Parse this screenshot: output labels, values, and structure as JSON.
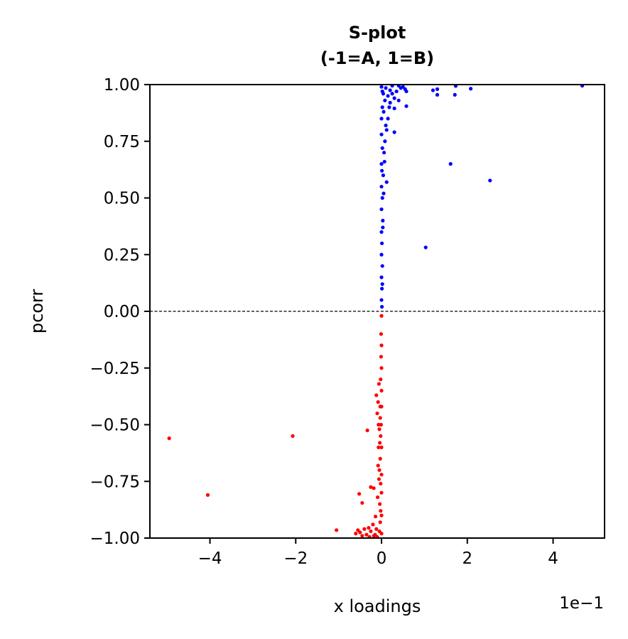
{
  "chart_data": {
    "type": "scatter",
    "title": "S-plot",
    "subtitle": "(-1=A, 1=B)",
    "xlabel": "x loadings",
    "ylabel": "pcorr",
    "x_offset_label": "1e−1",
    "xlim": [
      -0.54,
      0.52
    ],
    "ylim": [
      -1.0,
      1.0
    ],
    "xticks": [
      -0.4,
      -0.2,
      0.0,
      0.2,
      0.4
    ],
    "xtick_labels": [
      "−4",
      "−2",
      "0",
      "2",
      "4"
    ],
    "yticks": [
      1.0,
      0.75,
      0.5,
      0.25,
      0.0,
      -0.25,
      -0.5,
      -0.75,
      -1.0
    ],
    "ytick_labels": [
      "1.00",
      "0.75",
      "0.50",
      "0.25",
      "0.00",
      "−0.25",
      "−0.50",
      "−0.75",
      "−1.00"
    ],
    "reference_line": {
      "y": 0.0,
      "style": "dashed",
      "color": "#000000"
    },
    "grid": false,
    "series": [
      {
        "color": "#0000ff",
        "points": [
          [
            0.468,
            0.995
          ],
          [
            0.253,
            0.577
          ],
          [
            0.161,
            0.65
          ],
          [
            0.103,
            0.282
          ],
          [
            0.208,
            0.982
          ],
          [
            0.173,
            0.994
          ],
          [
            0.171,
            0.955
          ],
          [
            0.13,
            0.98
          ],
          [
            0.12,
            0.975
          ],
          [
            0.13,
            0.955
          ],
          [
            0.058,
            0.97
          ],
          [
            0.058,
            0.905
          ],
          [
            0.055,
            0.98
          ],
          [
            0.05,
            0.99
          ],
          [
            0.045,
            0.985
          ],
          [
            0.04,
            0.995
          ],
          [
            0.035,
            0.97
          ],
          [
            0.03,
            0.94
          ],
          [
            0.025,
            0.96
          ],
          [
            0.04,
            0.93
          ],
          [
            0.03,
            0.895
          ],
          [
            0.02,
            0.92
          ],
          [
            0.015,
            0.95
          ],
          [
            0.01,
            0.985
          ],
          [
            0.03,
            0.79
          ],
          [
            0.015,
            0.85
          ],
          [
            0.01,
            0.82
          ],
          [
            0.012,
            0.8
          ],
          [
            0.008,
            0.75
          ],
          [
            0.006,
            0.7
          ],
          [
            0.004,
            0.6
          ],
          [
            0.012,
            0.57
          ],
          [
            0.002,
            0.5
          ],
          [
            0.003,
            0.4
          ],
          [
            0.001,
            0.3
          ],
          [
            0.002,
            0.2
          ],
          [
            0.001,
            0.1
          ],
          [
            0.001,
            0.02
          ],
          [
            0.005,
            0.88
          ],
          [
            0.008,
            0.93
          ],
          [
            0.0,
            0.99
          ],
          [
            0.002,
            0.97
          ],
          [
            0.004,
            0.96
          ],
          [
            0.002,
            0.9
          ],
          [
            0.0,
            0.85
          ],
          [
            0.0,
            0.78
          ],
          [
            0.002,
            0.72
          ],
          [
            0.0,
            0.65
          ],
          [
            0.001,
            0.62
          ],
          [
            0.0,
            0.55
          ],
          [
            0.0,
            0.45
          ],
          [
            0.0,
            0.35
          ],
          [
            0.0,
            0.25
          ],
          [
            0.0,
            0.15
          ],
          [
            0.0,
            0.05
          ],
          [
            0.02,
            0.975
          ],
          [
            0.025,
            0.995
          ],
          [
            0.018,
            0.9
          ],
          [
            0.007,
            0.66
          ],
          [
            0.005,
            0.52
          ],
          [
            0.003,
            0.37
          ],
          [
            0.002,
            0.12
          ]
        ]
      },
      {
        "color": "#ff0000",
        "points": [
          [
            -0.495,
            -0.56
          ],
          [
            -0.405,
            -0.81
          ],
          [
            -0.207,
            -0.55
          ],
          [
            -0.105,
            -0.965
          ],
          [
            -0.033,
            -0.525
          ],
          [
            -0.052,
            -0.805
          ],
          [
            -0.045,
            -0.845
          ],
          [
            -0.025,
            -0.775
          ],
          [
            -0.018,
            -0.78
          ],
          [
            -0.014,
            -0.905
          ],
          [
            -0.012,
            -0.37
          ],
          [
            -0.006,
            -0.32
          ],
          [
            -0.008,
            -0.4
          ],
          [
            -0.01,
            -0.45
          ],
          [
            -0.007,
            -0.6
          ],
          [
            -0.005,
            -0.7
          ],
          [
            -0.009,
            -0.82
          ],
          [
            -0.02,
            -0.94
          ],
          [
            -0.03,
            -0.955
          ],
          [
            -0.04,
            -0.96
          ],
          [
            -0.05,
            -0.975
          ],
          [
            -0.045,
            -0.99
          ],
          [
            -0.035,
            -0.985
          ],
          [
            -0.025,
            -0.97
          ],
          [
            -0.015,
            -0.985
          ],
          [
            -0.01,
            -0.995
          ],
          [
            -0.005,
            -0.97
          ],
          [
            -0.003,
            -0.93
          ],
          [
            -0.002,
            -0.88
          ],
          [
            -0.004,
            -0.85
          ],
          [
            -0.003,
            -0.65
          ],
          [
            -0.002,
            -0.55
          ],
          [
            -0.001,
            -0.5
          ],
          [
            -0.003,
            -0.47
          ],
          [
            -0.002,
            -0.3
          ],
          [
            -0.001,
            -0.2
          ],
          [
            -0.001,
            -0.1
          ],
          [
            0.0,
            -0.02
          ],
          [
            0.0,
            -0.15
          ],
          [
            0.0,
            -0.25
          ],
          [
            0.0,
            -0.35
          ],
          [
            0.0,
            -0.42
          ],
          [
            0.0,
            -0.6
          ],
          [
            0.0,
            -0.72
          ],
          [
            0.0,
            -0.8
          ],
          [
            0.0,
            -0.9
          ],
          [
            0.0,
            -0.98
          ],
          [
            -0.006,
            -0.74
          ],
          [
            -0.008,
            -0.68
          ],
          [
            -0.004,
            -0.58
          ],
          [
            -0.012,
            -0.96
          ],
          [
            -0.018,
            -0.99
          ],
          [
            -0.028,
            -0.995
          ],
          [
            -0.055,
            -0.965
          ],
          [
            -0.06,
            -0.98
          ],
          [
            -0.002,
            -0.76
          ],
          [
            -0.005,
            -0.52
          ],
          [
            -0.007,
            -0.5
          ],
          [
            -0.003,
            -0.42
          ]
        ]
      }
    ]
  }
}
